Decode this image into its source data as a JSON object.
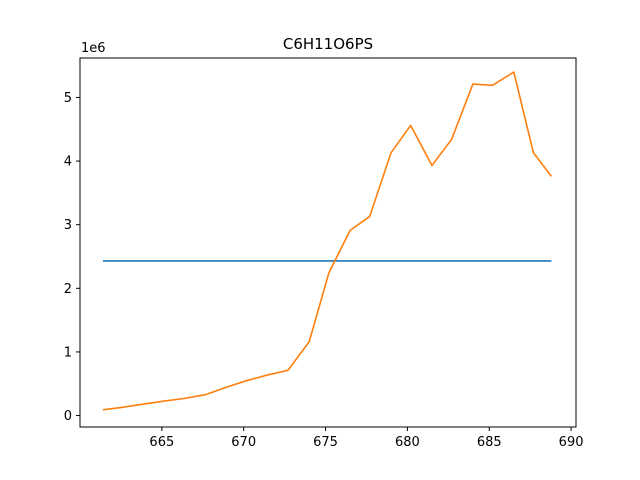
{
  "chart_data": {
    "type": "line",
    "title": "C6H11O6PS",
    "xlabel": "",
    "ylabel": "",
    "y_offset_label": "1e6",
    "xlim": [
      660,
      690.3
    ],
    "ylim": [
      -0.18,
      5.62
    ],
    "x_ticks": [
      665,
      670,
      675,
      680,
      685,
      690
    ],
    "y_ticks": [
      0,
      1,
      2,
      3,
      4,
      5
    ],
    "grid": false,
    "series": [
      {
        "color": "#1f77b4",
        "x": [
          661.4,
          688.8
        ],
        "y": [
          2.43,
          2.43
        ]
      },
      {
        "color": "#ff7f0e",
        "x": [
          661.4,
          662.6,
          663.9,
          665.2,
          666.4,
          667.7,
          669.0,
          670.2,
          671.5,
          672.7,
          674.0,
          675.2,
          676.5,
          677.7,
          679.0,
          680.2,
          681.5,
          682.7,
          684.0,
          685.2,
          686.5,
          687.7,
          688.8
        ],
        "y": [
          0.09,
          0.13,
          0.18,
          0.23,
          0.27,
          0.33,
          0.45,
          0.55,
          0.64,
          0.71,
          1.16,
          2.24,
          2.91,
          3.13,
          4.13,
          4.56,
          3.93,
          4.34,
          5.21,
          5.19,
          5.4,
          4.13,
          3.76
        ]
      }
    ]
  }
}
